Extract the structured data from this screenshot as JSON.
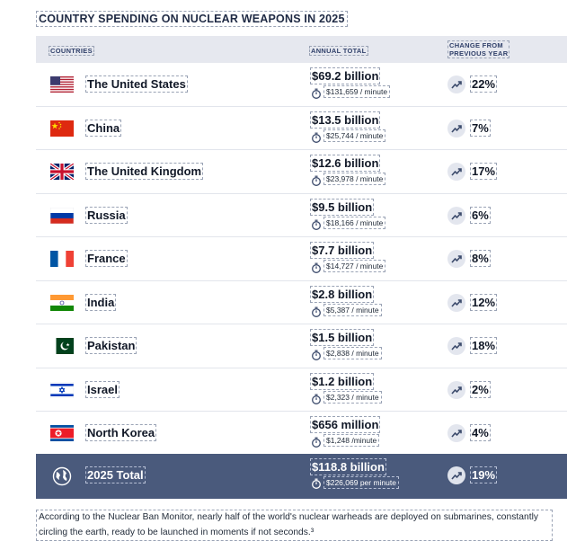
{
  "title": "COUNTRY SPENDING ON NUCLEAR WEAPONS IN 2025",
  "header": {
    "countries": "COUNTRIES",
    "annual_total": "ANNUAL TOTAL",
    "change_line1": "CHANGE FROM",
    "change_line2": "PREVIOUS YEAR"
  },
  "rows": [
    {
      "country": "The United States",
      "flag": "us-flag",
      "amount": "$69.2 billion",
      "per_minute": "$131,659 / minute",
      "change": "22%"
    },
    {
      "country": "China",
      "flag": "china-flag",
      "amount": "$13.5 billion",
      "per_minute": "$25,744 / minute",
      "change": "7%"
    },
    {
      "country": "The United Kingdom",
      "flag": "uk-flag",
      "amount": "$12.6 billion",
      "per_minute": "$23,978 / minute",
      "change": "17%"
    },
    {
      "country": "Russia",
      "flag": "russia-flag",
      "amount": "$9.5 billion",
      "per_minute": "$18,166 / minute",
      "change": "6%"
    },
    {
      "country": "France",
      "flag": "france-flag",
      "amount": "$7.7 billion",
      "per_minute": "$14,727 / minute",
      "change": "8%"
    },
    {
      "country": "India",
      "flag": "india-flag",
      "amount": "$2.8 billion",
      "per_minute": "$5,387 / minute",
      "change": "12%"
    },
    {
      "country": "Pakistan",
      "flag": "pakistan-flag",
      "amount": "$1.5 billion",
      "per_minute": "$2,838 / minute",
      "change": "18%"
    },
    {
      "country": "Israel",
      "flag": "israel-flag",
      "amount": "$1.2 billion",
      "per_minute": "$2,323 / minute",
      "change": "2%"
    },
    {
      "country": "North Korea",
      "flag": "north-korea-flag",
      "amount": "$656 million",
      "per_minute": "$1,248 /minute",
      "change": "4%"
    }
  ],
  "total": {
    "label": "2025 Total",
    "icon": "globe-icon",
    "amount": "$118.8 billion",
    "per_minute": "$226,069 per minute",
    "change": "19%"
  },
  "icons": {
    "clock": "stopwatch-icon",
    "trend": "trending-up-icon"
  },
  "colors": {
    "header_bg": "#e6e8ef",
    "total_bg": "#4a5a7c",
    "title": "#1f2a44"
  },
  "footnote": "According to the Nuclear Ban Monitor, nearly half of the world's nuclear warheads are deployed on submarines, constantly circling the earth, ready to be launched in moments if not seconds.³"
}
